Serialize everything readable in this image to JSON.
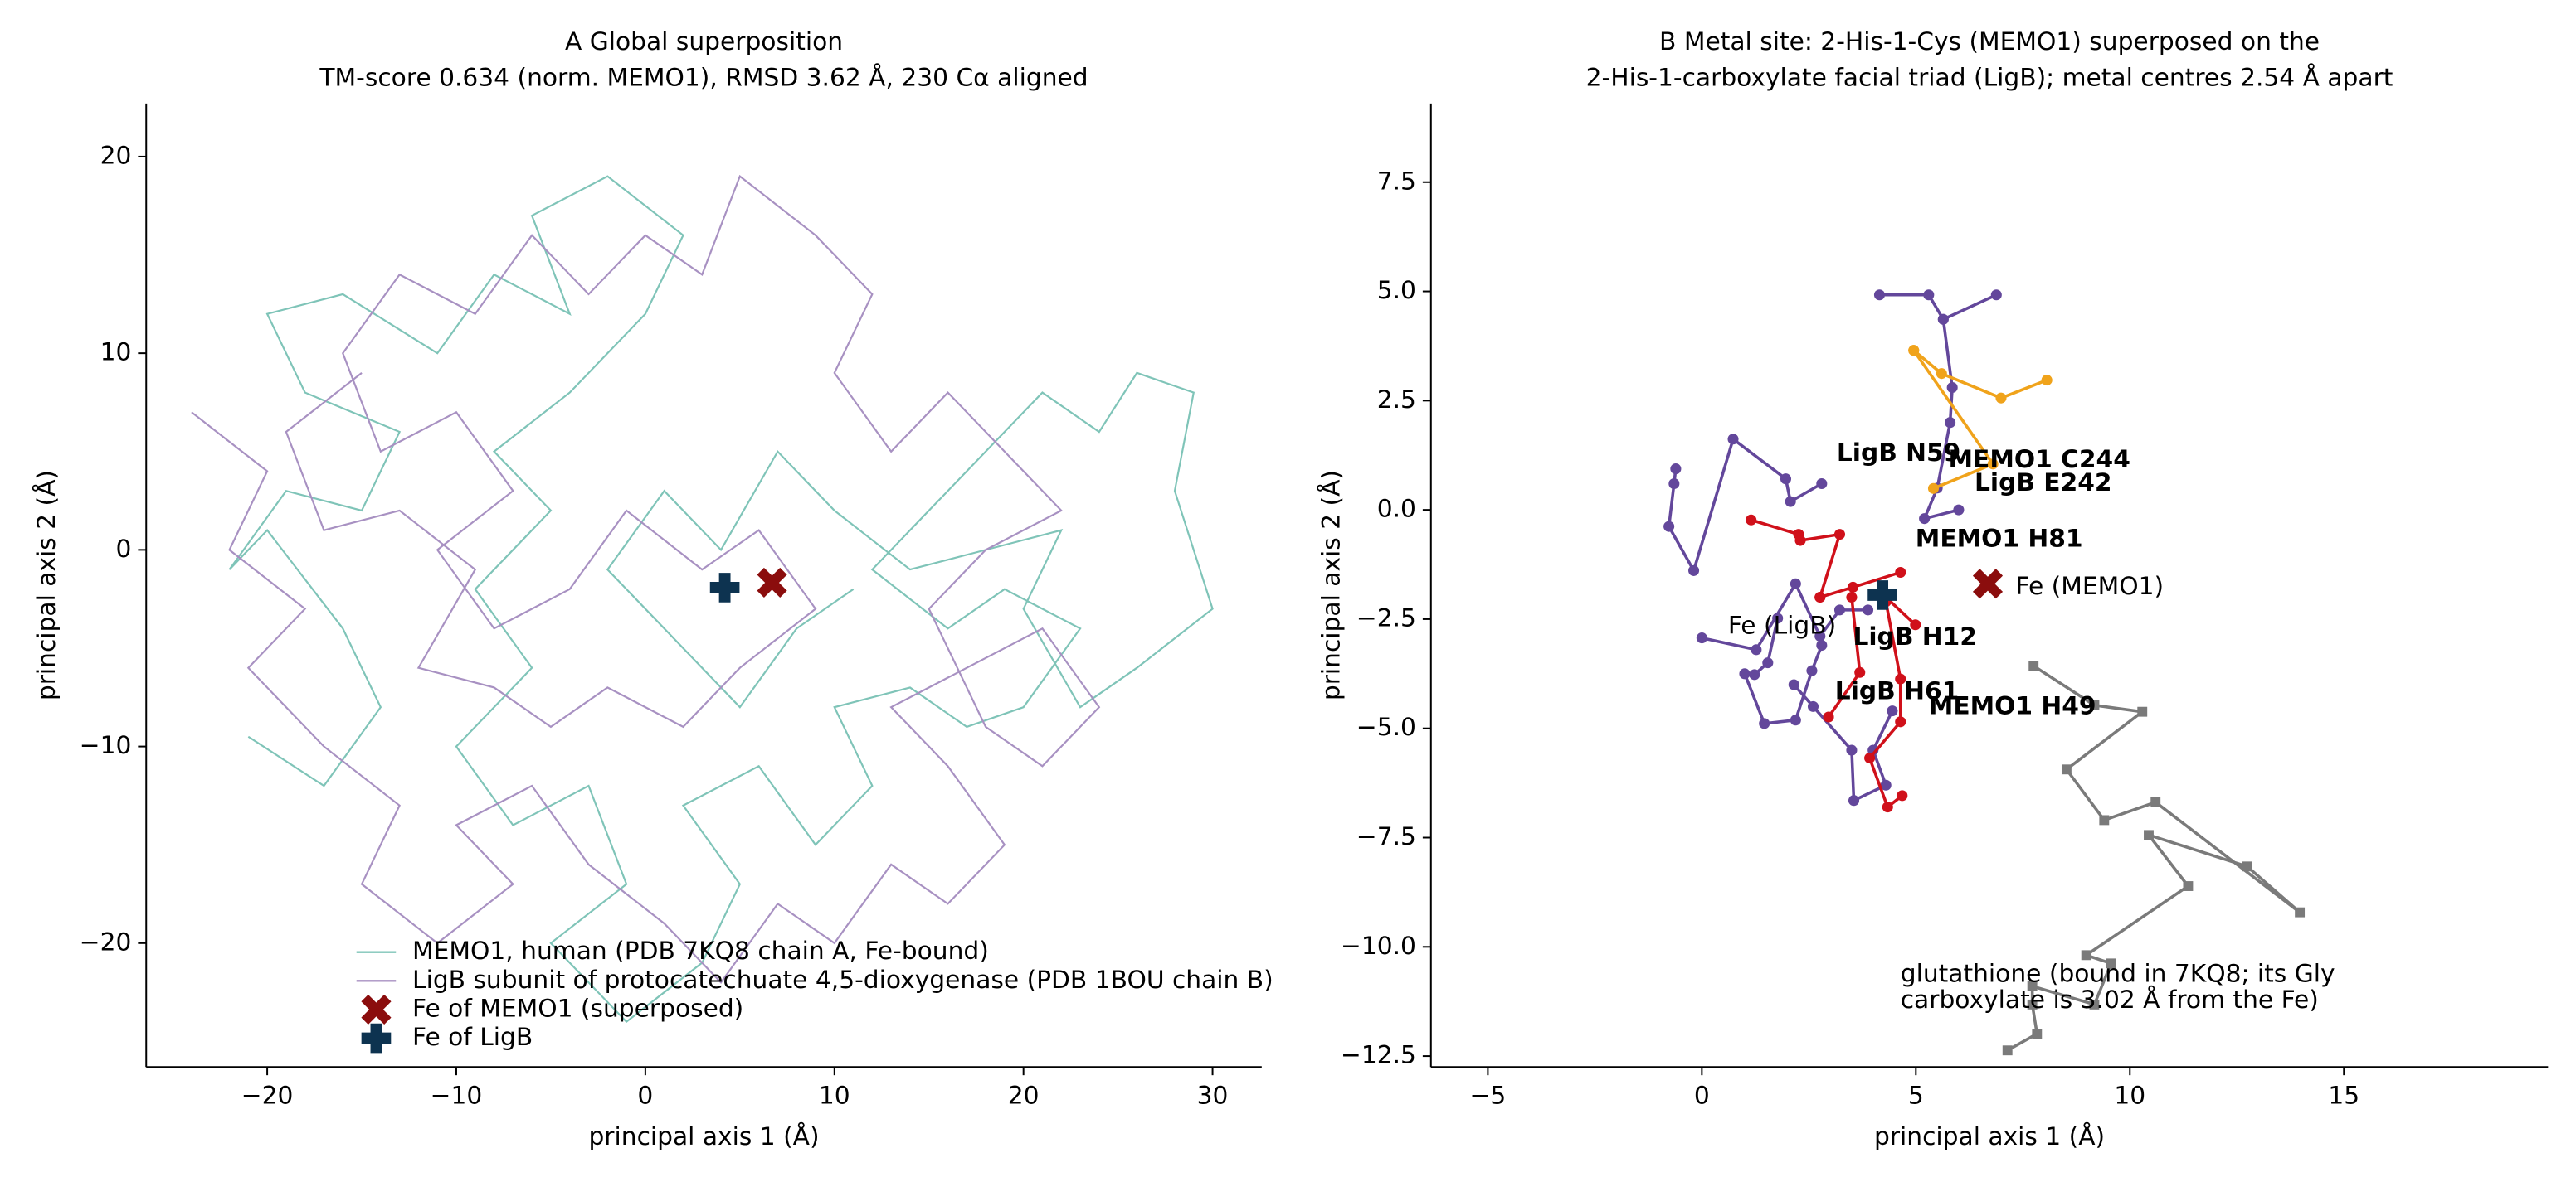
{
  "chart_data": [
    {
      "type": "line",
      "title": [
        "A  Global superposition",
        "TM-score 0.634 (norm. MEMO1), RMSD 3.62 Å, 230 Cα aligned"
      ],
      "xlabel": "principal axis 1 (Å)",
      "ylabel": "principal axis 2 (Å)",
      "xlim": [
        -26.4,
        32.6
      ],
      "ylim": [
        -26.3,
        22.7
      ],
      "xticks": [
        {
          "value": -20,
          "label": "−20"
        },
        {
          "value": -10,
          "label": "−10"
        },
        0,
        10,
        20,
        30
      ],
      "yticks": [
        {
          "value": -20,
          "label": "−20"
        },
        {
          "value": -10,
          "label": "−10"
        },
        0,
        10,
        20
      ],
      "grid": false,
      "legend": "lower left",
      "series": [
        {
          "name": "MEMO1, human (PDB 7KQ8 chain A, Fe-bound)",
          "color": "#7fc4b8",
          "x": [
            -21,
            -17,
            -14,
            -16,
            -20,
            -22,
            -19,
            -15,
            -13,
            -18,
            -20,
            -16,
            -11,
            -8,
            -4,
            -6,
            -2,
            2,
            0,
            -4,
            -8,
            -5,
            -9,
            -6,
            -10,
            -7,
            -3,
            -1,
            -5,
            -1,
            3,
            5,
            2,
            6,
            9,
            12,
            10,
            14,
            17,
            20,
            23,
            19,
            16,
            12,
            15,
            18,
            21,
            24,
            26,
            29,
            28,
            30,
            26,
            23,
            20,
            22,
            18,
            14,
            10,
            7,
            4,
            1,
            -2,
            2,
            5,
            8,
            11
          ],
          "y": [
            -9.5,
            -12,
            -8,
            -4,
            1,
            -1,
            3,
            2,
            6,
            8,
            12,
            13,
            10,
            14,
            12,
            17,
            19,
            16,
            12,
            8,
            5,
            2,
            -2,
            -6,
            -10,
            -14,
            -12,
            -17,
            -20,
            -24,
            -21,
            -17,
            -13,
            -11,
            -15,
            -12,
            -8,
            -7,
            -9,
            -8,
            -4,
            -2,
            -4,
            -1,
            2,
            5,
            8,
            6,
            9,
            8,
            3,
            -3,
            -6,
            -8,
            -3,
            1,
            0,
            -1,
            2,
            5,
            0,
            3,
            -1,
            -5,
            -8,
            -4,
            -2
          ]
        },
        {
          "name": "LigB subunit of protocatechuate 4,5-dioxygenase (PDB 1BOU chain B)",
          "color": "#a891c2",
          "x": [
            -24,
            -20,
            -22,
            -18,
            -21,
            -17,
            -13,
            -15,
            -11,
            -7,
            -10,
            -6,
            -3,
            1,
            4,
            7,
            10,
            13,
            16,
            19,
            16,
            13,
            17,
            21,
            24,
            21,
            18,
            15,
            18,
            22,
            19,
            16,
            13,
            10,
            12,
            9,
            5,
            3,
            0,
            -3,
            -6,
            -9,
            -13,
            -16,
            -14,
            -10,
            -7,
            -11,
            -8,
            -4,
            -1,
            3,
            6,
            9,
            5,
            2,
            -2,
            -5,
            -8,
            -12,
            -9,
            -13,
            -17,
            -19,
            -15
          ],
          "y": [
            7,
            4,
            0,
            -3,
            -6,
            -10,
            -13,
            -17,
            -20,
            -17,
            -14,
            -12,
            -16,
            -19,
            -22,
            -18,
            -20,
            -16,
            -18,
            -15,
            -11,
            -8,
            -6,
            -4,
            -8,
            -11,
            -9,
            -3,
            0,
            2,
            5,
            8,
            5,
            9,
            13,
            16,
            19,
            14,
            16,
            13,
            16,
            12,
            14,
            10,
            5,
            7,
            3,
            0,
            -4,
            -2,
            2,
            -1,
            1,
            -3,
            -6,
            -9,
            -7,
            -9,
            -7,
            -6,
            -1,
            2,
            1,
            6,
            9
          ]
        },
        {
          "name": "Fe of MEMO1 (superposed)",
          "color": "#8b0d0d",
          "marker": "x",
          "x": [
            6.7
          ],
          "y": [
            -1.67
          ]
        },
        {
          "name": "Fe of LigB",
          "color": "#0d3350",
          "marker": "plus",
          "x": [
            4.2
          ],
          "y": [
            -1.92
          ]
        }
      ]
    },
    {
      "type": "line",
      "title": [
        "B  Metal site: 2-His-1-Cys (MEMO1) superposed on the",
        "2-His-1-carboxylate facial triad (LigB); metal centres 2.54 Å apart"
      ],
      "xlabel": "principal axis 1 (Å)",
      "ylabel": "principal axis 2 (Å)",
      "xlim": [
        -6.33,
        19.77
      ],
      "ylim": [
        -12.75,
        9.3
      ],
      "xticks": [
        {
          "value": -5,
          "label": "−5"
        },
        0,
        5,
        10,
        15
      ],
      "yticks": [
        {
          "value": -12.5,
          "label": "−12.5"
        },
        {
          "value": -10,
          "label": "−10.0"
        },
        {
          "value": -7.5,
          "label": "−7.5"
        },
        {
          "value": -5,
          "label": "−5.0"
        },
        {
          "value": -2.5,
          "label": "−2.5"
        },
        {
          "value": 0,
          "label": "0.0"
        },
        2.5,
        {
          "value": 5,
          "label": "5.0"
        },
        7.5
      ],
      "grid": false,
      "series": [
        {
          "color": "#63479b",
          "marker": "circle",
          "x": [
            4.15,
            5.3,
            5.64,
            6.88
          ],
          "y": [
            4.92,
            4.92,
            4.36,
            4.92
          ]
        },
        {
          "color": "#63479b",
          "marker": "circle",
          "x": [
            5.64,
            5.85,
            5.8,
            5.5,
            5.2,
            6.0
          ],
          "y": [
            4.36,
            2.8,
            2.0,
            0.5,
            -0.2,
            0.0
          ]
        },
        {
          "color": "#63479b",
          "marker": "circle",
          "x": [
            2.8,
            2.07,
            1.96,
            0.73,
            -0.19,
            -0.77,
            -0.65,
            -0.61
          ],
          "y": [
            0.6,
            0.19,
            0.71,
            1.62,
            -1.39,
            -0.38,
            0.6,
            0.94
          ]
        },
        {
          "color": "#63479b",
          "marker": "circle",
          "x": [
            0,
            1.27,
            2.19,
            2.76,
            3.22,
            3.88
          ],
          "y": [
            -2.93,
            -3.2,
            -1.69,
            -2.89,
            -2.29,
            -2.29
          ]
        },
        {
          "color": "#63479b",
          "marker": "circle",
          "x": [
            1.77,
            1.54,
            1.23,
            1.0,
            1.46,
            2.19,
            2.57,
            2.8
          ],
          "y": [
            -2.48,
            -3.5,
            -3.77,
            -3.75,
            -4.89,
            -4.81,
            -3.68,
            -3.1
          ]
        },
        {
          "color": "#63479b",
          "marker": "circle",
          "x": [
            2.15,
            2.6,
            3.5,
            3.55,
            4.3,
            4.0,
            4.45
          ],
          "y": [
            -4.0,
            -4.5,
            -5.5,
            -6.65,
            -6.3,
            -5.5,
            -4.6
          ]
        },
        {
          "color": "#d0101a",
          "marker": "circle",
          "x": [
            1.15,
            2.26,
            2.3,
            3.22,
            2.76
          ],
          "y": [
            -0.23,
            -0.56,
            -0.7,
            -0.56,
            -2.0
          ]
        },
        {
          "color": "#d0101a",
          "marker": "circle",
          "x": [
            2.76,
            3.53,
            4.64
          ],
          "y": [
            -2.0,
            -1.77,
            -1.43
          ]
        },
        {
          "color": "#d0101a",
          "marker": "circle",
          "x": [
            4.3,
            4.99
          ],
          "y": [
            -2.0,
            -2.63
          ]
        },
        {
          "color": "#d0101a",
          "marker": "circle",
          "x": [
            4.3,
            4.64,
            4.64,
            3.92,
            4.34,
            4.68
          ],
          "y": [
            -2.1,
            -3.87,
            -4.85,
            -5.68,
            -6.8,
            -6.54
          ]
        },
        {
          "color": "#d0101a",
          "marker": "circle",
          "x": [
            3.5,
            3.69,
            2.96
          ],
          "y": [
            -2.0,
            -3.72,
            -4.74
          ]
        },
        {
          "color": "#f0a31b",
          "marker": "circle",
          "x": [
            4.95,
            5.6,
            6.99,
            8.06
          ],
          "y": [
            3.65,
            3.12,
            2.56,
            2.97
          ]
        },
        {
          "color": "#f0a31b",
          "marker": "circle",
          "x": [
            4.95,
            6.8,
            5.41
          ],
          "y": [
            3.65,
            1.05,
            0.49
          ]
        },
        {
          "color": "#7a7a7a",
          "marker": "square",
          "x": [
            7.75,
            9.17,
            10.29,
            8.52,
            9.4,
            10.6,
            13.97,
            12.74,
            10.44,
            11.36,
            8.98,
            9.56,
            9.17,
            7.72,
            7.72,
            7.83,
            7.14
          ],
          "y": [
            -3.57,
            -4.47,
            -4.62,
            -5.94,
            -7.1,
            -6.69,
            -9.21,
            -8.16,
            -7.44,
            -8.61,
            -10.19,
            -10.38,
            -11.32,
            -10.9,
            -11.32,
            -11.99,
            -12.37
          ]
        },
        {
          "color": "#8b0d0d",
          "marker": "x",
          "x": [
            6.68
          ],
          "y": [
            -1.69
          ]
        },
        {
          "color": "#0d3350",
          "marker": "plus",
          "x": [
            4.22
          ],
          "y": [
            -1.95
          ]
        }
      ],
      "annotations": [
        {
          "text": [
            "LigB N59"
          ],
          "x": 3.15,
          "y": 1.28,
          "color": "#63479b",
          "bold": true
        },
        {
          "text": [
            "MEMO1 C244"
          ],
          "x": 5.76,
          "y": 1.13,
          "color": "#f0a31b",
          "bold": true
        },
        {
          "text": [
            "LigB E242"
          ],
          "x": 6.37,
          "y": 0.6,
          "color": "#63479b",
          "bold": true
        },
        {
          "text": [
            "MEMO1 H81"
          ],
          "x": 4.99,
          "y": -0.68,
          "color": "#d0101a",
          "bold": true
        },
        {
          "text": [
            "Fe (MEMO1)"
          ],
          "x": 7.33,
          "y": -1.77,
          "color": "#8b0d0d",
          "bold": false
        },
        {
          "text": [
            "Fe (LigB)"
          ],
          "x": 0.61,
          "y": -2.67,
          "color": "#0d3350",
          "bold": false
        },
        {
          "text": [
            "LigB H12"
          ],
          "x": 3.53,
          "y": -2.93,
          "color": "#63479b",
          "bold": true
        },
        {
          "text": [
            "LigB H61"
          ],
          "x": 3.11,
          "y": -4.17,
          "color": "#63479b",
          "bold": true
        },
        {
          "text": [
            "MEMO1 H49"
          ],
          "x": 5.3,
          "y": -4.51,
          "color": "#d0101a",
          "bold": true
        },
        {
          "text": [
            "glutathione (bound in 7KQ8; its Gly",
            "carboxylate is 3.02 Å from the Fe)"
          ],
          "x": 4.64,
          "y": -10.64,
          "color": "#555555",
          "bold": false
        }
      ]
    }
  ]
}
